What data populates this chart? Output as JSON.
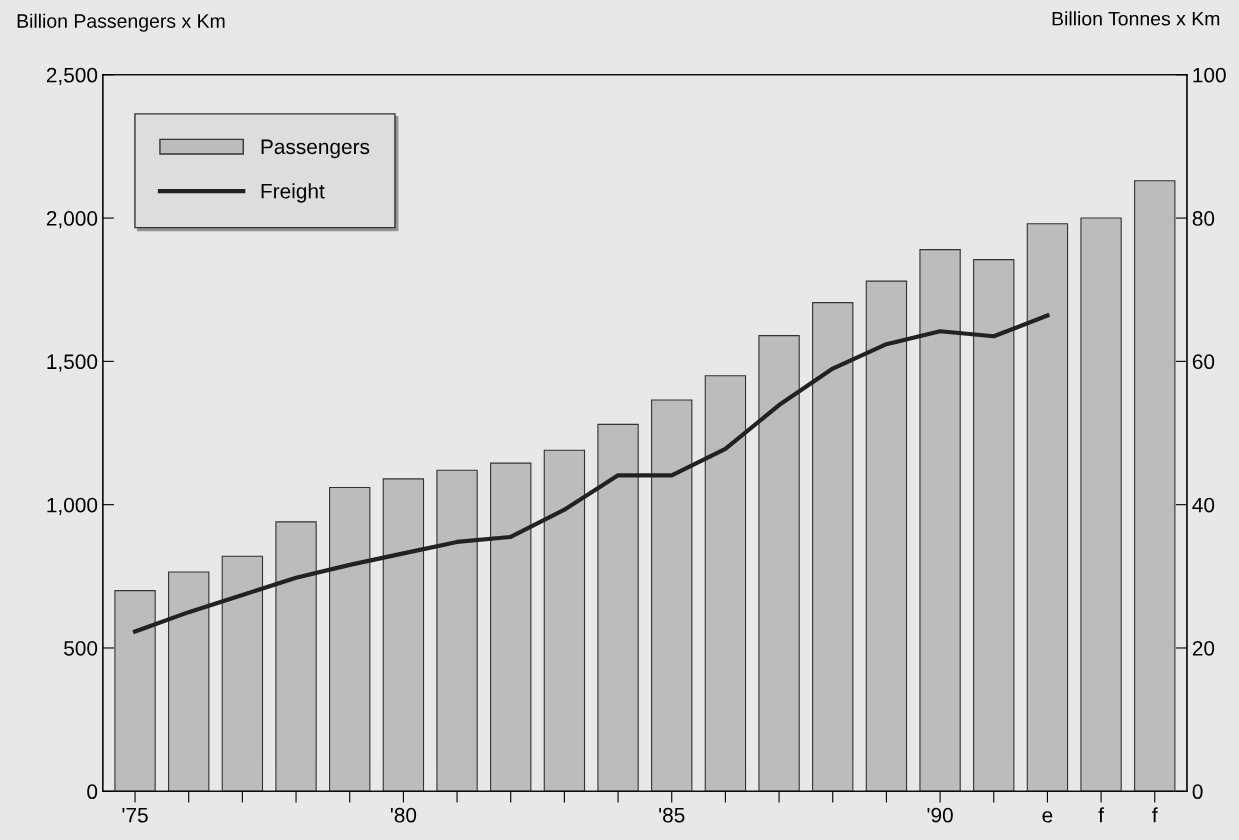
{
  "chart_data": {
    "type": "bar",
    "ylabel": "Billion Passengers x Km",
    "y2label": "Billion Tonnes x Km",
    "categories": [
      "'75",
      null,
      null,
      null,
      null,
      "'80",
      null,
      null,
      null,
      null,
      "'85",
      null,
      null,
      null,
      null,
      "'90",
      null,
      "e",
      "f",
      "f"
    ],
    "series": [
      {
        "name": "Passengers",
        "color": "#bcbcbc",
        "values": [
          700,
          765,
          820,
          940,
          1060,
          1090,
          1120,
          1145,
          1190,
          1280,
          1365,
          1450,
          1590,
          1705,
          1780,
          1890,
          1855,
          1980,
          2000,
          2130
        ]
      },
      {
        "name": "Freight",
        "type": "line",
        "axis": "y2",
        "color": "#222222",
        "values": [
          22.3,
          25.0,
          27.4,
          29.8,
          31.6,
          33.2,
          34.8,
          35.5,
          39.3,
          44.1,
          44.1,
          47.8,
          53.9,
          59.0,
          62.4,
          64.2,
          63.5,
          66.4,
          null,
          null
        ]
      }
    ],
    "ylim": [
      0,
      2500
    ],
    "yticks": [
      0,
      500,
      {
        "value": 1000,
        "label": "1,000"
      },
      {
        "value": 1500,
        "label": "1,500"
      },
      {
        "value": 2000,
        "label": "2,000"
      },
      {
        "value": 2500,
        "label": "2,500"
      }
    ],
    "y2lim": [
      0,
      100
    ],
    "y2ticks": [
      0,
      20,
      40,
      60,
      80,
      100
    ],
    "grid": false,
    "legend": "top left",
    "marker": "none",
    "line_style": "solid"
  }
}
